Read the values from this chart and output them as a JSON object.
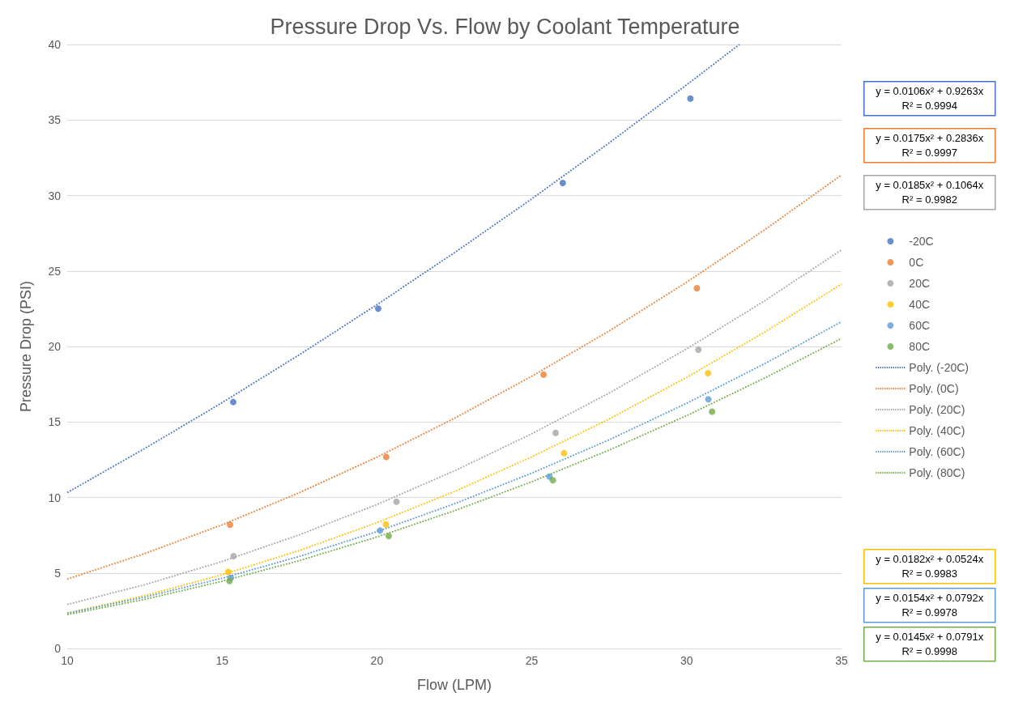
{
  "chart_data": {
    "type": "scatter",
    "title": "Pressure Drop Vs. Flow by Coolant Temperature",
    "xlabel": "Flow (LPM)",
    "ylabel": "Pressure Drop (PSI)",
    "xlim": [
      10,
      35
    ],
    "xticks": [
      10,
      15,
      20,
      25,
      30,
      35
    ],
    "ylim": [
      0,
      40
    ],
    "yticks": [
      0,
      5,
      10,
      15,
      20,
      25,
      30,
      35,
      40
    ],
    "grid": "y",
    "legend": "right",
    "marker": "circle",
    "series": [
      {
        "name": "-20C",
        "color": "#4472c4",
        "x": [
          15.36,
          20.04,
          26.0,
          30.12
        ],
        "values": [
          16.32,
          22.51,
          30.83,
          36.42
        ]
      },
      {
        "name": "0C",
        "color": "#ed7d31",
        "x": [
          15.26,
          20.3,
          25.38,
          30.33
        ],
        "values": [
          8.19,
          12.68,
          18.14,
          23.86
        ]
      },
      {
        "name": "20C",
        "color": "#a5a5a5",
        "x": [
          15.37,
          20.63,
          25.77,
          30.38
        ],
        "values": [
          6.11,
          9.72,
          14.28,
          19.79
        ]
      },
      {
        "name": "40C",
        "color": "#ffc000",
        "x": [
          15.2,
          20.29,
          26.04,
          30.69
        ],
        "values": [
          5.07,
          8.22,
          12.93,
          18.23
        ]
      },
      {
        "name": "60C",
        "color": "#5b9bd5",
        "x": [
          15.28,
          20.1,
          25.57,
          30.7
        ],
        "values": [
          4.68,
          7.81,
          11.38,
          16.5
        ]
      },
      {
        "name": "80C",
        "color": "#70ad47",
        "x": [
          15.24,
          20.38,
          25.68,
          30.82
        ],
        "values": [
          4.46,
          7.44,
          11.14,
          15.68
        ]
      },
      {
        "name": "Poly. (-20C)",
        "type": "line",
        "marker": "none",
        "line_style": "dotted",
        "color": "#4472c4",
        "x": [
          10,
          12.5,
          15,
          17.5,
          20,
          22.5,
          25,
          27.5,
          30,
          31.7
        ],
        "values": [
          10.32,
          13.24,
          16.28,
          19.46,
          22.77,
          26.21,
          29.78,
          33.49,
          37.33,
          40.0
        ]
      },
      {
        "name": "Poly. (0C)",
        "type": "line",
        "marker": "none",
        "line_style": "dotted",
        "color": "#ed7d31",
        "x": [
          10,
          12.5,
          15,
          17.5,
          20,
          22.5,
          25,
          27.5,
          30,
          32.5,
          35
        ],
        "values": [
          4.59,
          6.28,
          8.19,
          10.32,
          12.67,
          15.24,
          18.03,
          21.03,
          24.26,
          27.7,
          31.36
        ]
      },
      {
        "name": "Poly. (20C)",
        "type": "line",
        "marker": "none",
        "line_style": "dotted",
        "color": "#a5a5a5",
        "x": [
          10,
          12.5,
          15,
          17.5,
          20,
          22.5,
          25,
          27.5,
          30,
          32.5,
          35
        ],
        "values": [
          2.91,
          4.22,
          5.76,
          7.53,
          9.53,
          11.76,
          14.22,
          16.92,
          19.84,
          23.0,
          26.39
        ]
      },
      {
        "name": "Poly. (40C)",
        "type": "line",
        "marker": "none",
        "line_style": "dotted",
        "color": "#ffc000",
        "x": [
          10,
          12.5,
          15,
          17.5,
          20,
          22.5,
          25,
          27.5,
          30,
          32.5,
          35
        ],
        "values": [
          2.34,
          3.5,
          4.88,
          6.49,
          8.33,
          10.39,
          12.69,
          15.2,
          17.95,
          20.93,
          24.13
        ]
      },
      {
        "name": "Poly. (60C)",
        "type": "line",
        "marker": "none",
        "line_style": "dotted",
        "color": "#5b9bd5",
        "x": [
          10,
          12.5,
          15,
          17.5,
          20,
          22.5,
          25,
          27.5,
          30,
          32.5,
          35
        ],
        "values": [
          2.33,
          3.4,
          4.65,
          6.1,
          7.74,
          9.58,
          11.61,
          13.82,
          16.24,
          18.84,
          21.64
        ]
      },
      {
        "name": "Poly. (80C)",
        "type": "line",
        "marker": "none",
        "line_style": "dotted",
        "color": "#70ad47",
        "x": [
          10,
          12.5,
          15,
          17.5,
          20,
          22.5,
          25,
          27.5,
          30,
          32.5,
          35
        ],
        "values": [
          2.24,
          3.25,
          4.45,
          5.82,
          7.38,
          9.12,
          11.04,
          13.14,
          15.42,
          17.89,
          20.53
        ]
      }
    ],
    "annotations": [
      "y = 0.0106x² + 0.9263x\nR² = 0.9994",
      "y = 0.0175x² + 0.2836x\nR² = 0.9997",
      "y = 0.0185x² + 0.1064x\nR² = 0.9982",
      "y = 0.0182x² + 0.0524x\nR² = 0.9983",
      "y = 0.0154x² + 0.0792x\nR² = 0.9978",
      "y = 0.0145x² + 0.0791x\nR² = 0.9998"
    ]
  }
}
